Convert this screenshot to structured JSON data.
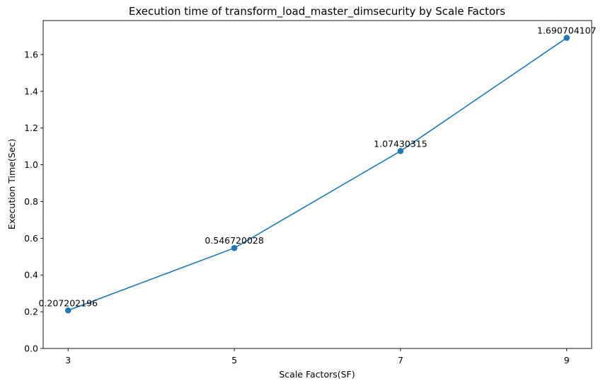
{
  "chart_data": {
    "type": "line",
    "title": "Execution time of transform_load_master_dimsecurity by Scale Factors",
    "xlabel": "Scale Factors(SF)",
    "ylabel": "Execution Time(Sec)",
    "x": [
      3,
      5,
      7,
      9
    ],
    "xticks": [
      "3",
      "5",
      "7",
      "9"
    ],
    "xlim": [
      2.7,
      9.3
    ],
    "ylim": [
      0,
      1.785
    ],
    "yticks": [
      "0.0",
      "0.2",
      "0.4",
      "0.6",
      "0.8",
      "1.0",
      "1.2",
      "1.4",
      "1.6"
    ],
    "series": [
      {
        "values": [
          0.207202196,
          0.546720028,
          1.07430315,
          1.690704107
        ],
        "labels": [
          "0.207202196",
          "0.546720028",
          "1.07430315",
          "1.690704107"
        ],
        "color": "#1f77b4",
        "marker": "circle"
      }
    ],
    "grid": false,
    "legend": "none"
  }
}
